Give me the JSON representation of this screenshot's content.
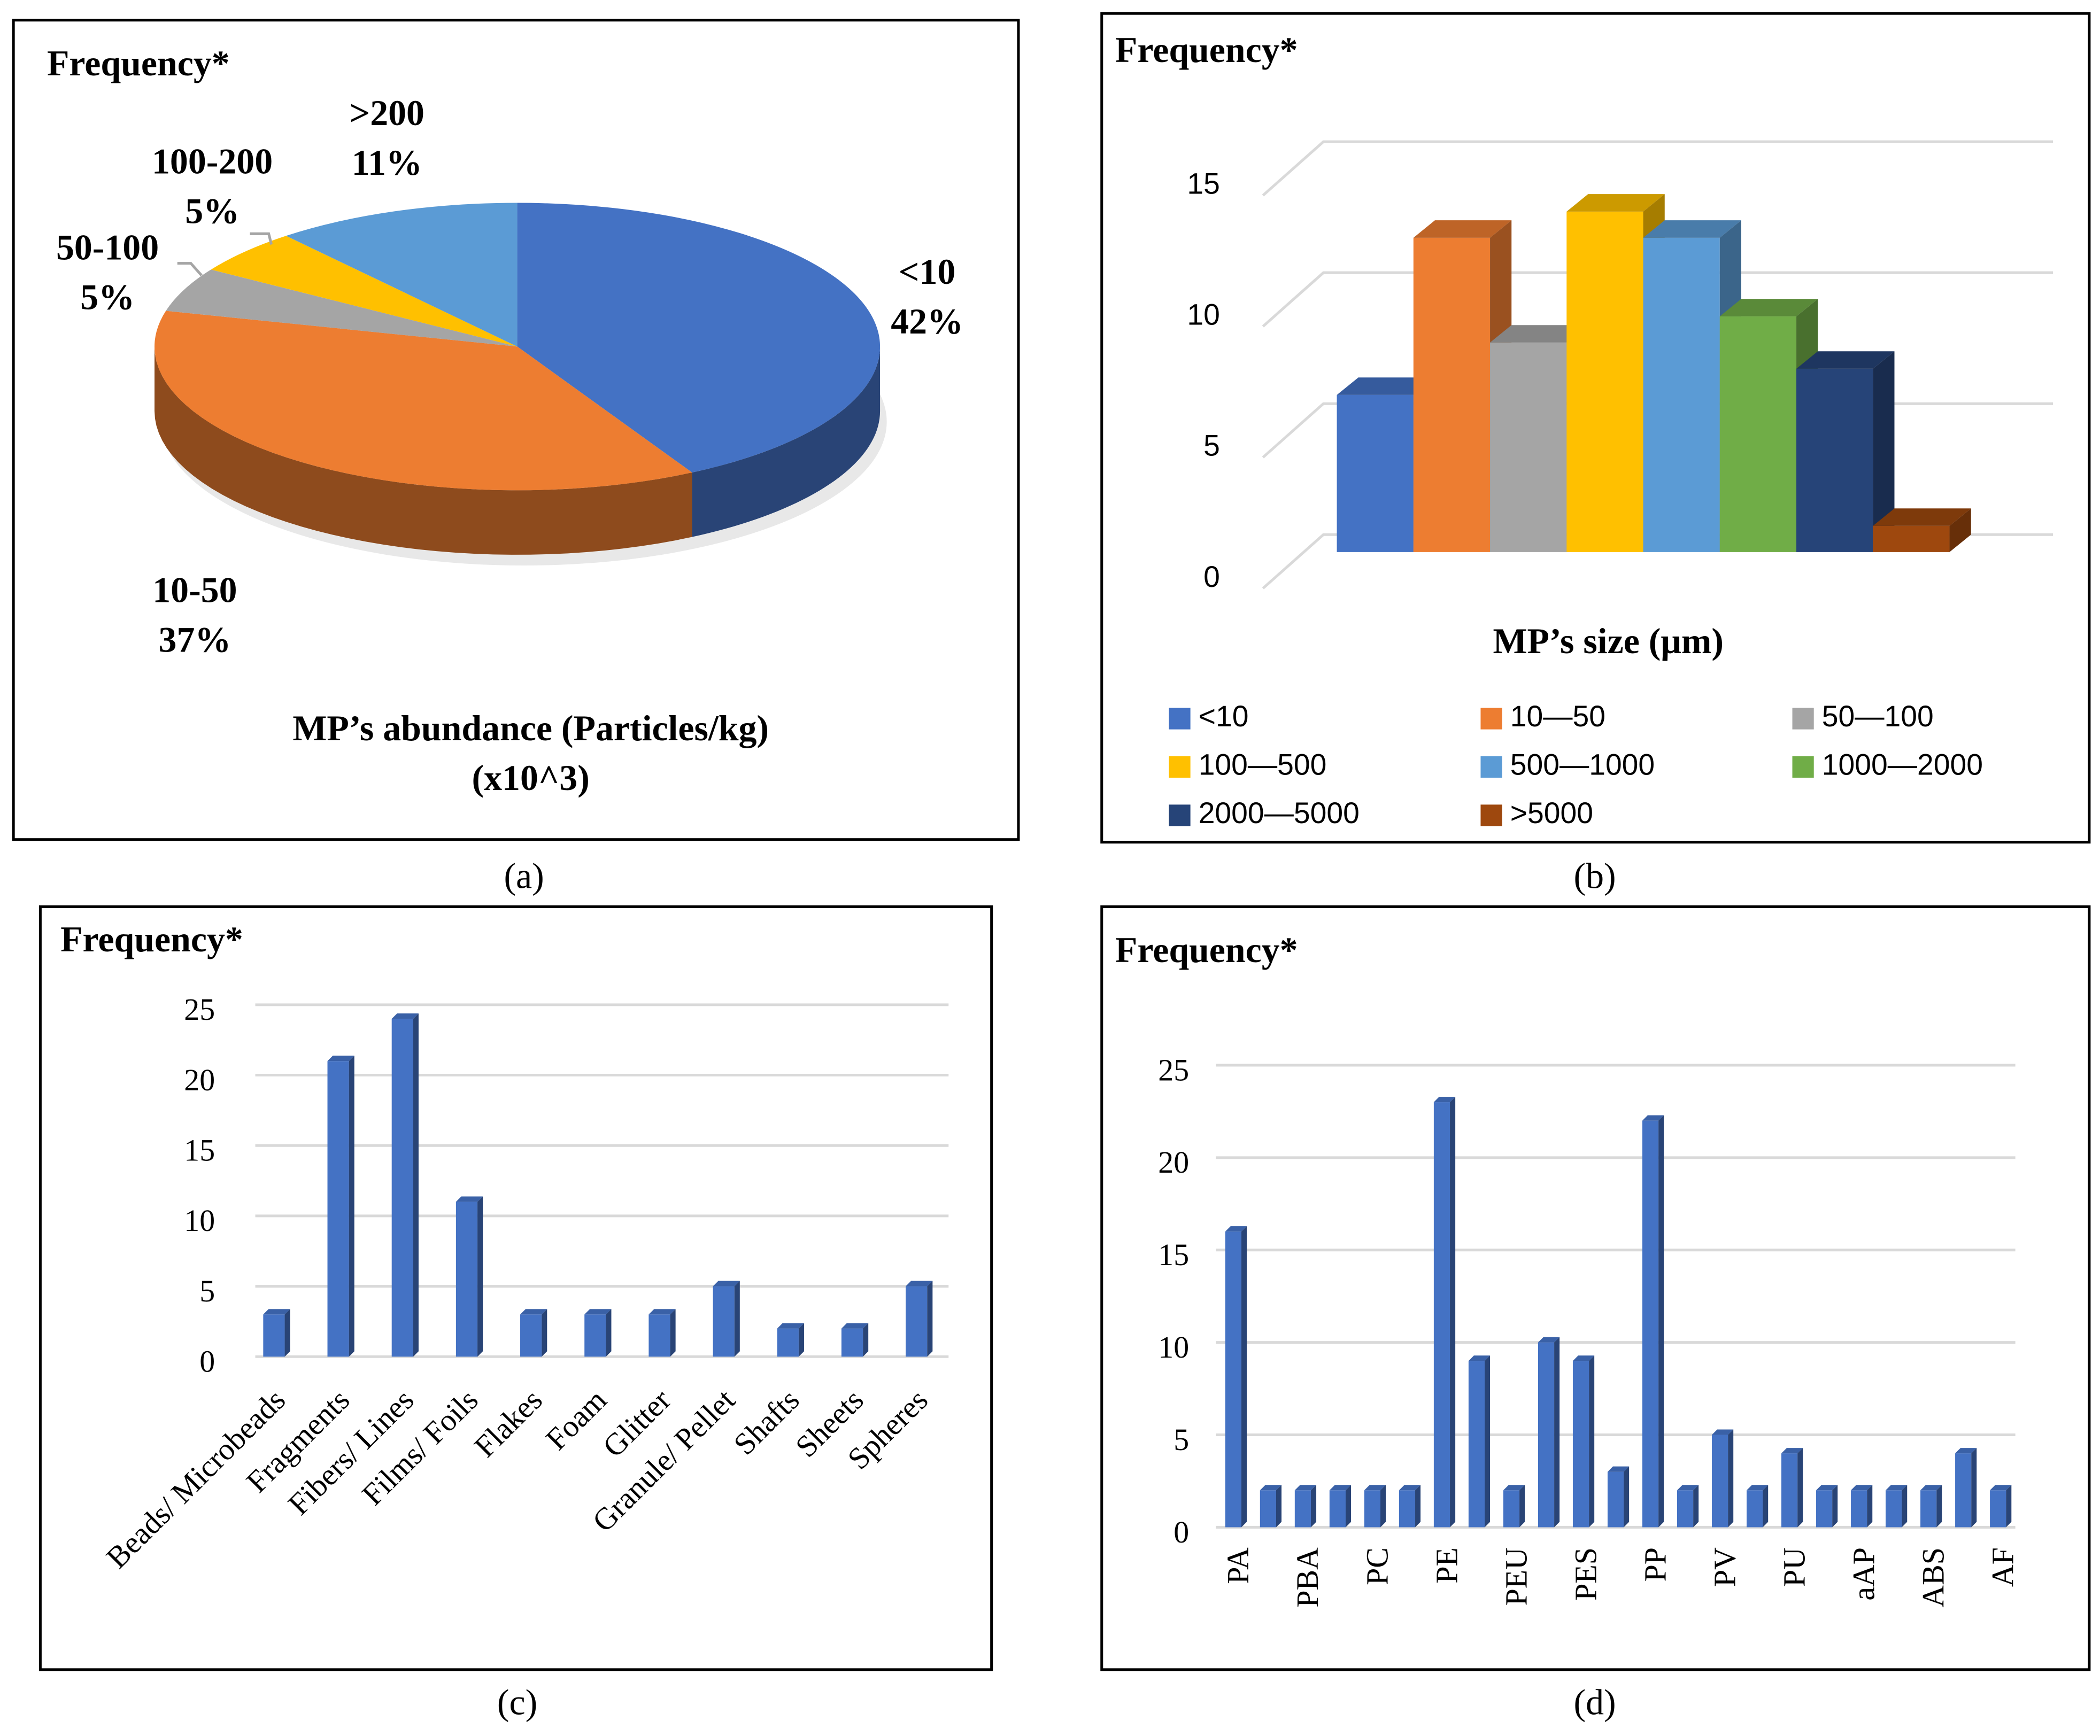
{
  "chart_data": [
    {
      "type": "pie",
      "title": "Frequency*",
      "caption": "(a)",
      "categories": [
        "<10",
        "10-50",
        "50-100",
        "100-200",
        ">200"
      ],
      "values": [
        42,
        37,
        5,
        5,
        11
      ],
      "value_labels": [
        "42%",
        "37%",
        "5%",
        "5%",
        "11%"
      ],
      "colors": [
        "#4472c4",
        "#ed7d31",
        "#a5a5a5",
        "#ffc000",
        "#5b9bd5"
      ],
      "axis_label": [
        "MP’s abundance (Particles/kg)",
        "(x10^3)"
      ]
    },
    {
      "type": "bar",
      "title": "Frequency*",
      "caption": "(b)",
      "categories": [
        "<10",
        "10—50",
        "50—100",
        "100—500",
        "500—1000",
        "1000—2000",
        "2000—5000",
        ">5000"
      ],
      "values": [
        6,
        12,
        8,
        13,
        12,
        9,
        7,
        1
      ],
      "colors": [
        "#4472c4",
        "#ed7d31",
        "#a5a5a5",
        "#ffc000",
        "#5b9bd5",
        "#70ad47",
        "#264478",
        "#9e480e"
      ],
      "x_label": "MP’s size (μm)",
      "ylim": [
        0,
        15
      ],
      "yticks": [
        0,
        5,
        10,
        15
      ],
      "grid": true,
      "legend": "bottom"
    },
    {
      "type": "bar",
      "title": "Frequency*",
      "caption": "(c)",
      "categories": [
        "Beads/ Microbeads",
        "Fragments",
        "Fibers/ Lines",
        "Films/ Foils",
        "Flakes",
        "Foam",
        "Glitter",
        "Granule/ Pellet",
        "Shafts",
        "Sheets",
        "Spheres"
      ],
      "values": [
        3,
        21,
        24,
        11,
        3,
        3,
        3,
        5,
        2,
        2,
        5
      ],
      "color": "#4472c4",
      "ylim": [
        0,
        25
      ],
      "yticks": [
        0,
        5,
        10,
        15,
        20,
        25
      ],
      "grid": true
    },
    {
      "type": "bar",
      "title": "Frequency*",
      "caption": "(d)",
      "categories": [
        "PA",
        null,
        "PBA",
        null,
        "PC",
        null,
        "PE",
        null,
        "PEU",
        null,
        "PES",
        null,
        "PP",
        null,
        "PV",
        null,
        "PU",
        null,
        "aAP",
        null,
        "ABS",
        null,
        "AF"
      ],
      "values": [
        16,
        2,
        2,
        2,
        2,
        2,
        23,
        9,
        2,
        10,
        9,
        3,
        22,
        2,
        5,
        2,
        4,
        2,
        2,
        2,
        2,
        4,
        2
      ],
      "color": "#4472c4",
      "ylim": [
        0,
        25
      ],
      "yticks": [
        0,
        5,
        10,
        15,
        20,
        25
      ],
      "grid": true
    }
  ]
}
